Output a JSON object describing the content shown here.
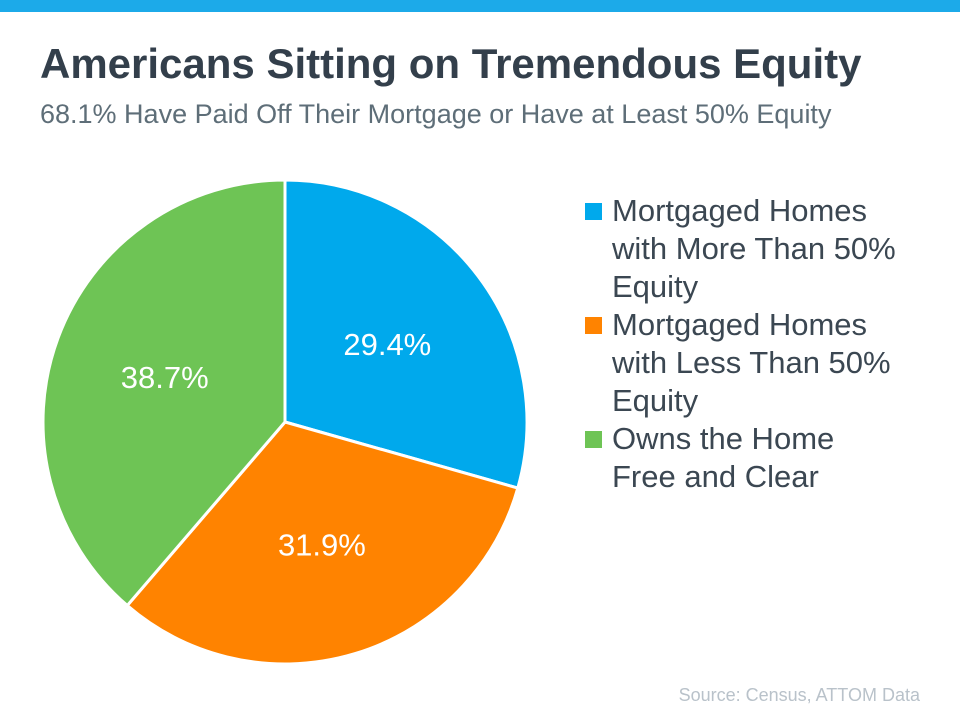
{
  "header": {
    "title": "Americans Sitting on Tremendous Equity",
    "subtitle": "68.1% Have Paid Off Their Mortgage or Have at Least 50% Equity"
  },
  "footer": {
    "source": "Source: Census, ATTOM Data"
  },
  "colors": {
    "top_bar": "#1CAAE9",
    "title_text": "#333F4B",
    "subtitle_text": "#5E6E78",
    "legend_text": "#3B4752",
    "source_text": "#B9C2CA",
    "slice_label": "#FFFFFF",
    "slice_divider": "#FFFFFF"
  },
  "chart_data": {
    "type": "pie",
    "title": "Americans Sitting on Tremendous Equity",
    "subtitle": "68.1% Have Paid Off Their Mortgage or Have at Least 50% Equity",
    "start_angle_deg": -90,
    "direction": "clockwise",
    "data_labels": "inside",
    "legend_position": "right",
    "slices": [
      {
        "label": "Mortgaged Homes with More Than 50% Equity",
        "legend_lines": [
          "Mortgaged Homes",
          "with More Than 50%",
          "Equity"
        ],
        "value": 29.4,
        "display": "29.4%",
        "color": "#00A9EC"
      },
      {
        "label": "Mortgaged Homes with Less Than 50% Equity",
        "legend_lines": [
          "Mortgaged Homes",
          "with Less Than 50%",
          "Equity"
        ],
        "value": 31.9,
        "display": "31.9%",
        "color": "#FF8300"
      },
      {
        "label": "Owns the Home Free and Clear",
        "legend_lines": [
          "Owns the Home",
          "Free and Clear"
        ],
        "value": 38.7,
        "display": "38.7%",
        "color": "#6EC455"
      }
    ]
  }
}
